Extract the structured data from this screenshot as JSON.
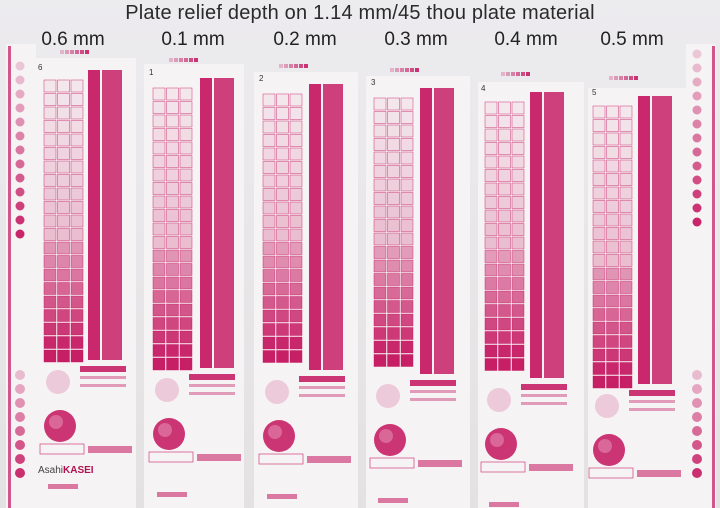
{
  "title": "Plate relief depth on 1.14 mm/45 thou plate material",
  "columns": [
    {
      "label": "0.6 mm",
      "plate_number": "6"
    },
    {
      "label": "0.1 mm",
      "plate_number": "1"
    },
    {
      "label": "0.2 mm",
      "plate_number": "2"
    },
    {
      "label": "0.3 mm",
      "plate_number": "3"
    },
    {
      "label": "0.4 mm",
      "plate_number": "4"
    },
    {
      "label": "0.5 mm",
      "plate_number": "5"
    }
  ],
  "brand": {
    "asahi": "Asahi",
    "kasei": "KASEI"
  },
  "colors": {
    "magenta": "#c4135d",
    "magenta_light": "#e59ab9",
    "paper": "#f6f3f4",
    "background": "#e6e3e3"
  }
}
